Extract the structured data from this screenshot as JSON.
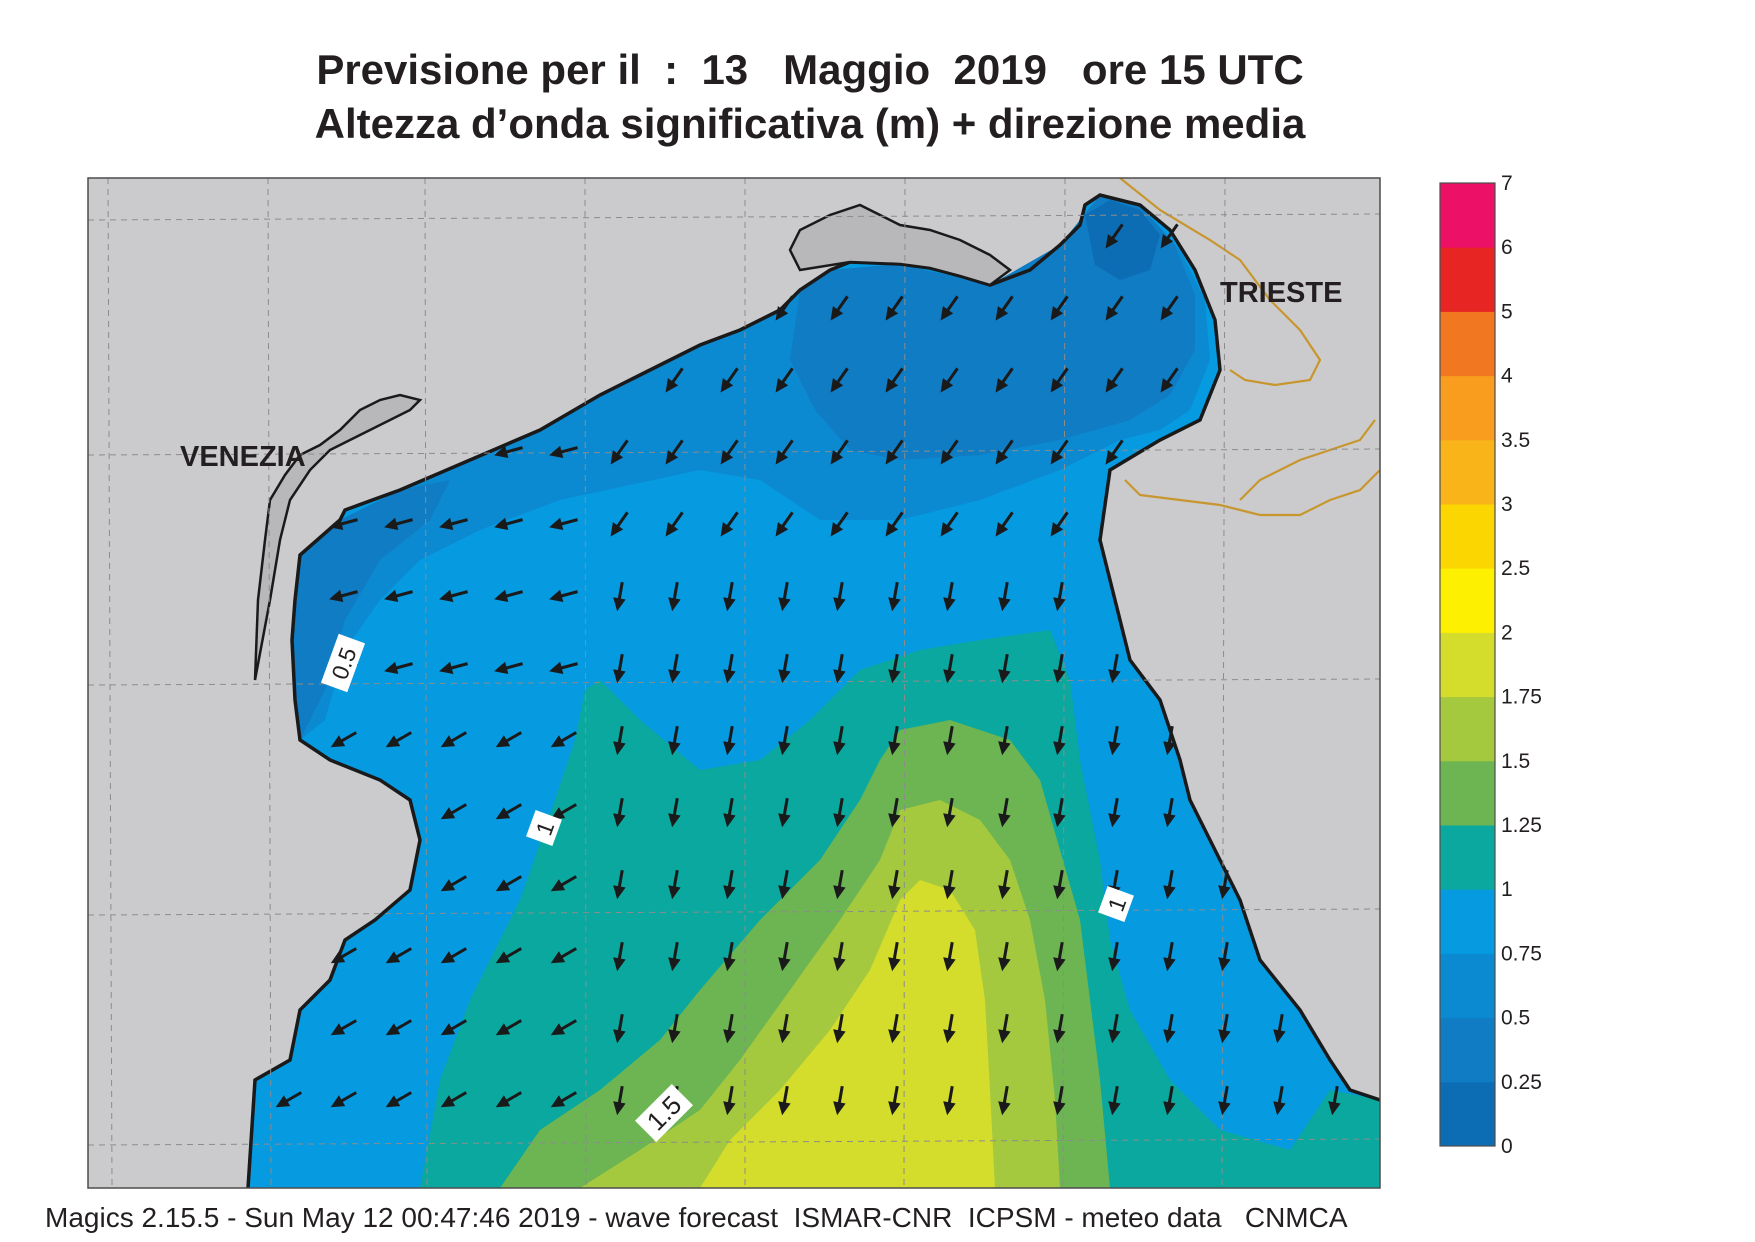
{
  "title": {
    "line1": "Previsione per il  :  13   Maggio  2019   ore 15 UTC",
    "line2": "Altezza d’onda significativa (m) + direzione media"
  },
  "map": {
    "cities": [
      {
        "name": "VENEZIA"
      },
      {
        "name": "TRIESTE"
      }
    ],
    "contour_labels": [
      "0.5",
      "1",
      "1",
      "1.5"
    ],
    "land_color": "#cbcbcd",
    "border_color": "#c8962e"
  },
  "legend": {
    "ticks": [
      "0",
      "0.25",
      "0.5",
      "0.75",
      "1",
      "1.25",
      "1.5",
      "1.75",
      "2",
      "2.5",
      "3",
      "3.5",
      "4",
      "5",
      "6",
      "7"
    ],
    "colors": [
      "#0c6db5",
      "#0f7cc4",
      "#0b8ad2",
      "#069ae0",
      "#0aa89e",
      "#6db552",
      "#a5c93e",
      "#d4dc2c",
      "#fdf000",
      "#fcd600",
      "#f9b419",
      "#f89d1e",
      "#f27721",
      "#e72624",
      "#ec1067"
    ]
  },
  "footer": "Magics 2.15.5 - Sun May 12 00:47:46 2019 - wave forecast  ISMAR-CNR  ICPSM - meteo data   CNMCA"
}
